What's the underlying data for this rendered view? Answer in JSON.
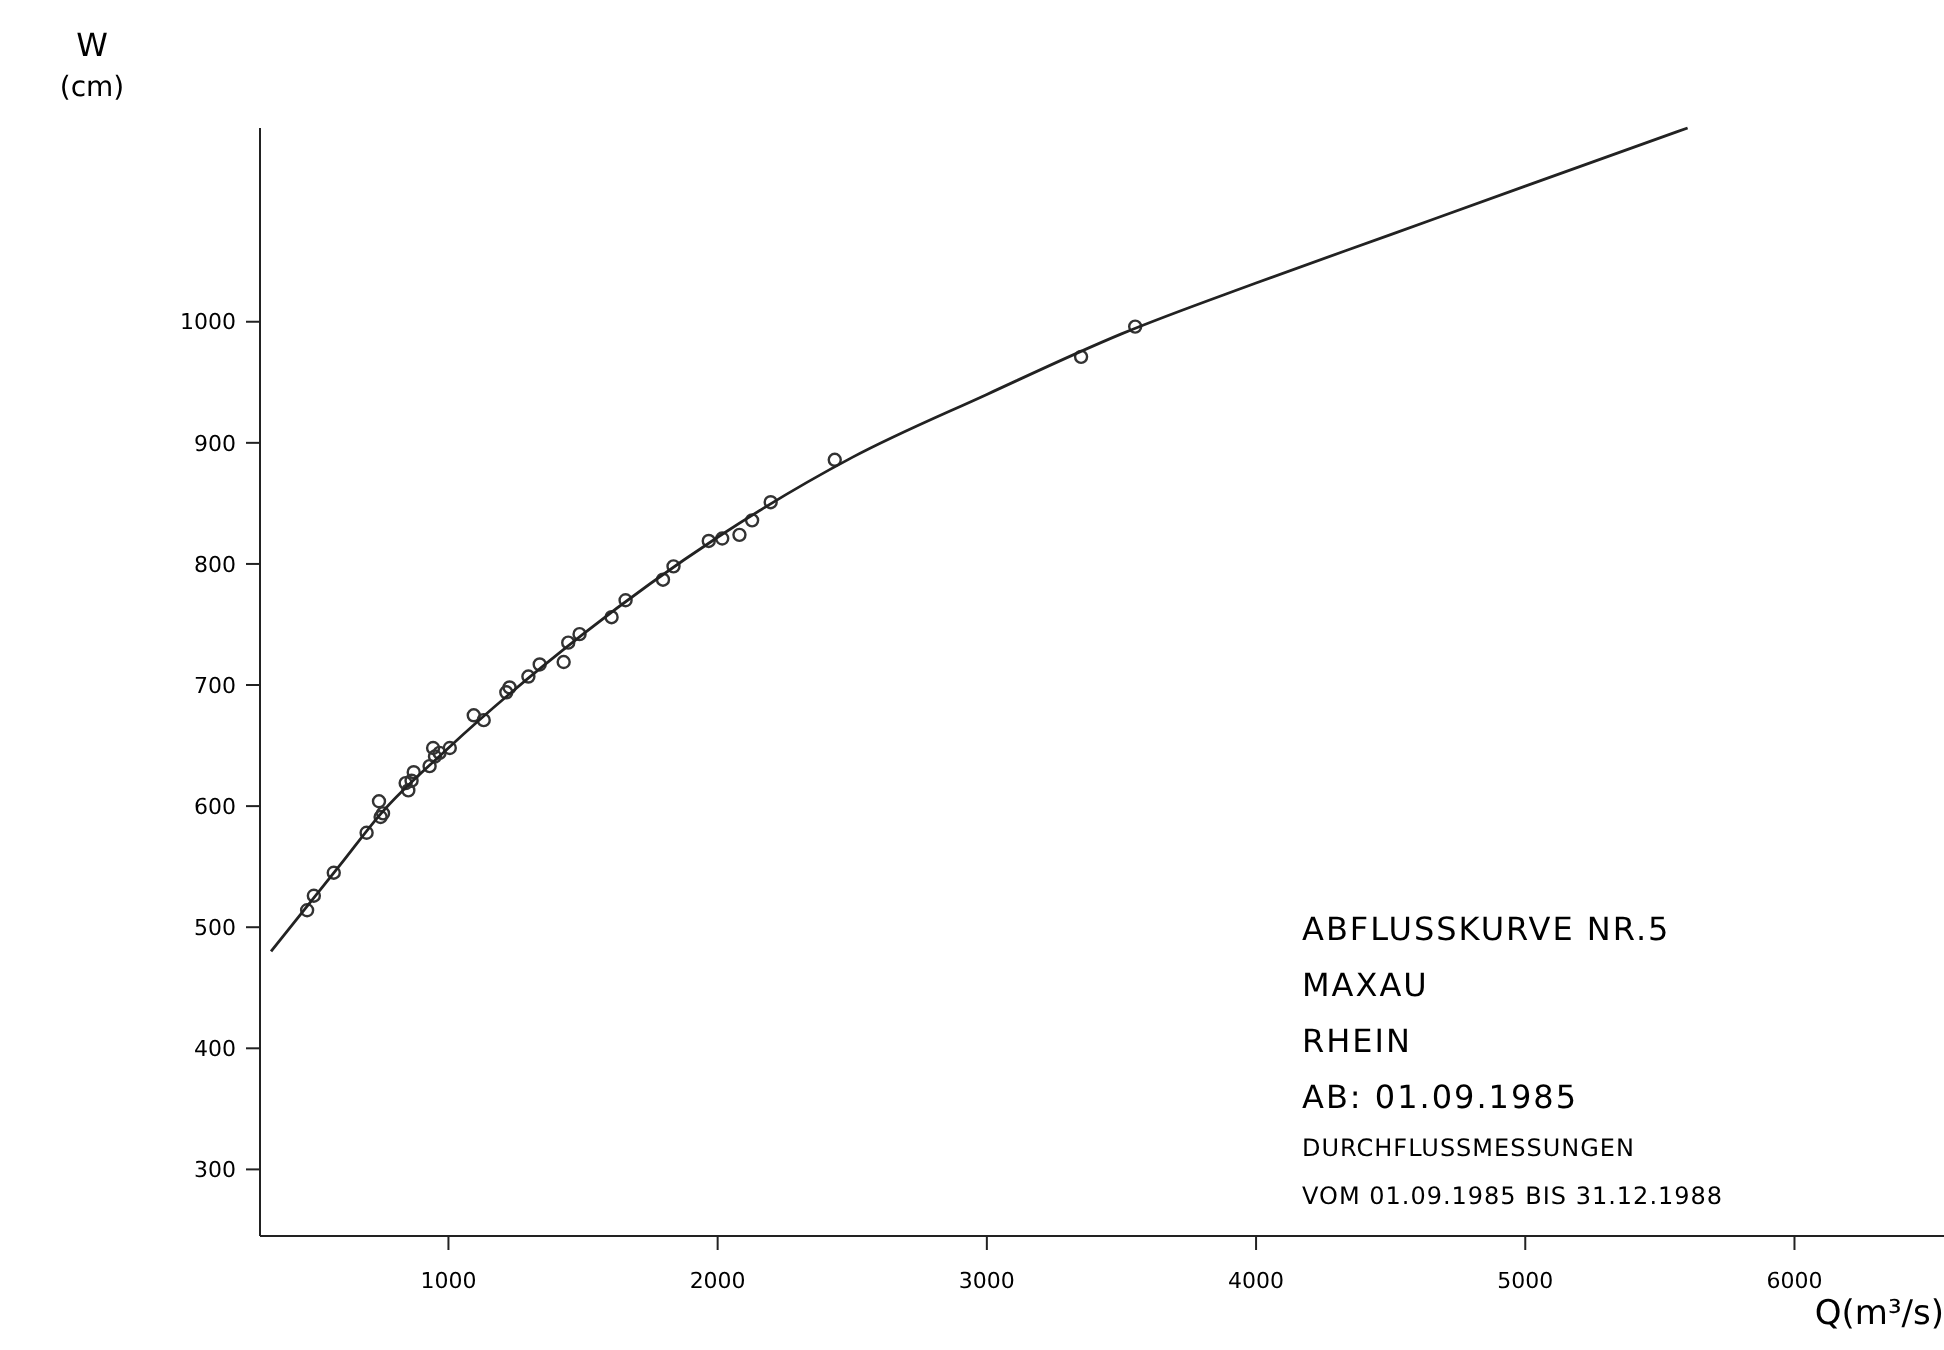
{
  "chart_data": {
    "type": "scatter",
    "xlabel": "Q(m³/s)",
    "ylabel": "W (cm)",
    "xlim": [
      300,
      6600
    ],
    "ylim": [
      245,
      1160
    ],
    "xticks": [
      1000,
      2000,
      3000,
      4000,
      5000,
      6000
    ],
    "yticks": [
      300,
      400,
      500,
      600,
      700,
      800,
      900,
      1000
    ],
    "grid": false,
    "marker": "circle",
    "annotations": [
      "ABFLUSSKURVE NR.5",
      "MAXAU",
      "RHEIN",
      "AB: 01.09.1985",
      "DURCHFLUSSMESSUNGEN",
      "VOM 01.09.1985 BIS 31.12.1988"
    ],
    "series": [
      {
        "color": "#333333",
        "x": [
          475,
          500,
          574,
          696,
          742,
          748,
          757,
          841,
          851,
          863,
          871,
          930,
          943,
          950,
          967,
          1005,
          1094,
          1131,
          1215,
          1227,
          1297,
          1339,
          1428,
          1445,
          1487,
          1606,
          1658,
          1797,
          1836,
          1967,
          2017,
          2081,
          2128,
          2197,
          2435,
          3350,
          3551
        ],
        "values": [
          514,
          526,
          545,
          578,
          604,
          591,
          594,
          619,
          613,
          621,
          628,
          633,
          648,
          641,
          644,
          648,
          675,
          671,
          694,
          698,
          707,
          717,
          719,
          735,
          742,
          756,
          770,
          787,
          798,
          819,
          821,
          824,
          836,
          851,
          886,
          971,
          996
        ]
      },
      {
        "type": "line",
        "color": "#222222",
        "line_style": "solid",
        "marker": "none",
        "x": [
          341,
          600,
          750,
          1000,
          1500,
          2000,
          2500,
          3000,
          3500,
          4000,
          4500,
          5000,
          5603
        ],
        "values": [
          480,
          552,
          594,
          648,
          742,
          822,
          888,
          940,
          990,
          1032,
          1072,
          1112,
          1160
        ]
      }
    ]
  }
}
